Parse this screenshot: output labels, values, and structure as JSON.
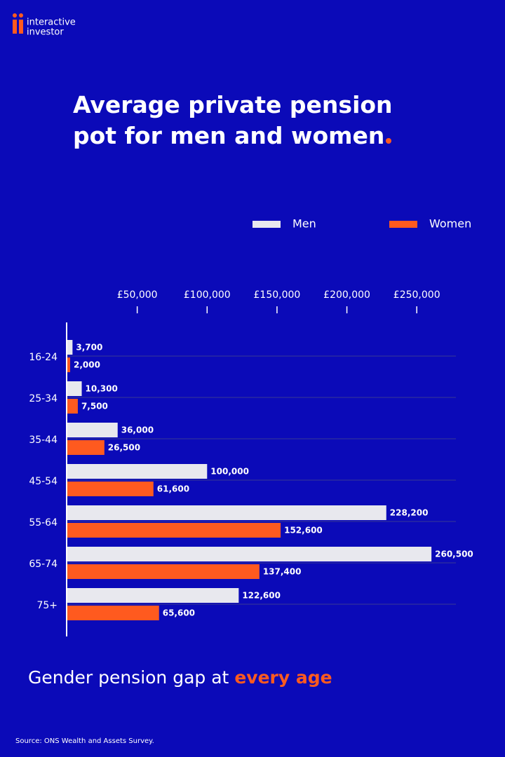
{
  "logo": {
    "lines": [
      "interactive",
      "investor"
    ]
  },
  "chart_data": {
    "type": "bar",
    "orientation": "horizontal",
    "title": "Average private pension pot for men and women",
    "categories": [
      "16-24",
      "25-34",
      "35-44",
      "45-54",
      "55-64",
      "65-74",
      "75+"
    ],
    "series": [
      {
        "name": "Men",
        "color": "#e8e8ee",
        "values": [
          3700,
          10300,
          36000,
          100000,
          228200,
          260500,
          122600
        ],
        "value_labels": [
          "3,700",
          "10,300",
          "36,000",
          "100,000",
          "228,200",
          "260,500",
          "122,600"
        ]
      },
      {
        "name": "Women",
        "color": "#ff5a1f",
        "values": [
          2000,
          7500,
          26500,
          61600,
          152600,
          137400,
          65600
        ],
        "value_labels": [
          "2,000",
          "7,500",
          "26,500",
          "61,600",
          "152,600",
          "137,400",
          "65,600"
        ]
      }
    ],
    "xlim": [
      0,
      280000
    ],
    "xticks": [
      {
        "value": 50000,
        "label": "£50,000"
      },
      {
        "value": 100000,
        "label": "£100,000"
      },
      {
        "value": 150000,
        "label": "£150,000"
      },
      {
        "value": 200000,
        "label": "£200,000"
      },
      {
        "value": 250000,
        "label": "£250,000"
      }
    ],
    "legend": "top-right",
    "caption": "Gender pension gap at",
    "caption_highlight": "every age",
    "source": "Source: ONS Wealth and Assets Survey."
  }
}
